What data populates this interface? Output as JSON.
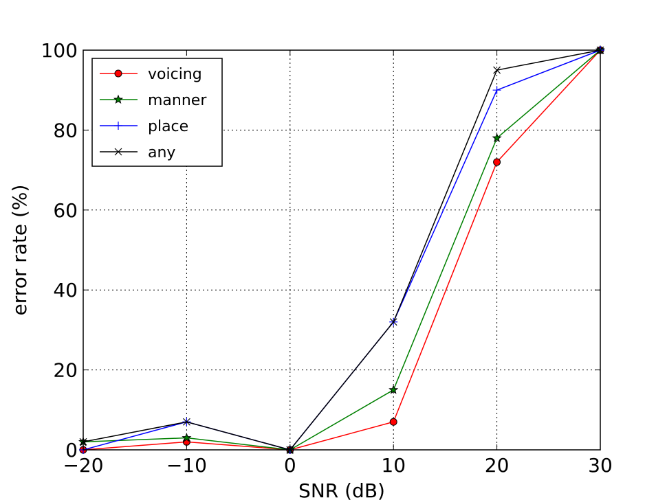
{
  "chart_data": {
    "type": "line",
    "xlabel": "SNR (dB)",
    "ylabel": "error rate (%)",
    "xlim": [
      -20,
      30
    ],
    "ylim": [
      0,
      100
    ],
    "x": [
      -20,
      -10,
      0,
      10,
      20,
      30
    ],
    "xticks": [
      -20,
      -10,
      0,
      10,
      20,
      30
    ],
    "yticks": [
      0,
      20,
      40,
      60,
      80,
      100
    ],
    "xtick_labels": [
      "−20",
      "−10",
      "0",
      "10",
      "20",
      "30"
    ],
    "ytick_labels": [
      "0",
      "20",
      "40",
      "60",
      "80",
      "100"
    ],
    "grid": true,
    "legend_position": "top-left",
    "series": [
      {
        "name": "voicing",
        "values": [
          0,
          2,
          0,
          7,
          72,
          100
        ],
        "color": "#ff0000",
        "marker": "circle"
      },
      {
        "name": "manner",
        "values": [
          2,
          3,
          0,
          15,
          78,
          100
        ],
        "color": "#008000",
        "marker": "star"
      },
      {
        "name": "place",
        "values": [
          0,
          7,
          0,
          32,
          90,
          100
        ],
        "color": "#0000ff",
        "marker": "plus"
      },
      {
        "name": "any",
        "values": [
          2,
          7,
          0,
          32,
          95,
          100
        ],
        "color": "#000000",
        "marker": "x"
      }
    ]
  }
}
